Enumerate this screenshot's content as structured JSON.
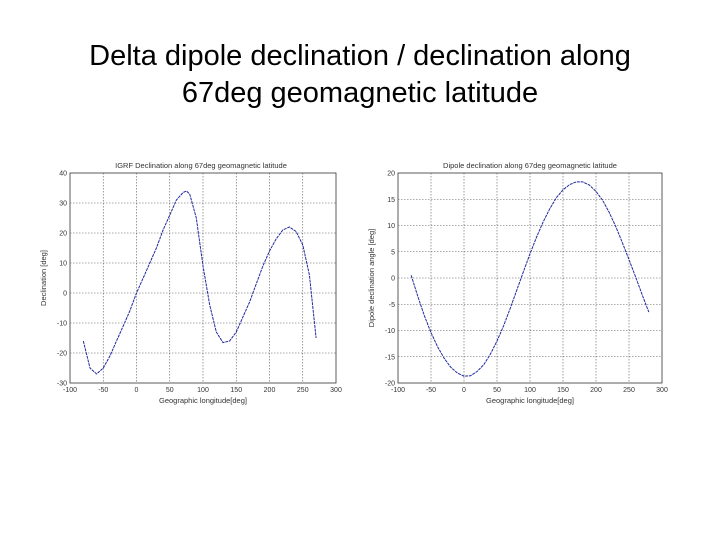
{
  "slide": {
    "title_line1": "Delta dipole declination / declination along",
    "title_line2": "67deg geomagnetic latitude"
  },
  "chart_data": [
    {
      "type": "line",
      "title": "IGRF Declination along 67deg geomagnetic latitude",
      "xlabel": "Geographic longitude[deg]",
      "ylabel": "Declination [deg]",
      "xlim": [
        -100,
        300
      ],
      "ylim": [
        -30,
        40
      ],
      "xticks": [
        -100,
        -50,
        0,
        50,
        100,
        150,
        200,
        250,
        300
      ],
      "yticks": [
        -30,
        -20,
        -10,
        0,
        10,
        20,
        30,
        40
      ],
      "grid": true,
      "line_color": "#1f2a9c",
      "series": [
        {
          "x": [
            -80,
            -70,
            -60,
            -50,
            -40,
            -30,
            -20,
            -10,
            0,
            10,
            20,
            30,
            40,
            50,
            60,
            70,
            75,
            80,
            90,
            100,
            110,
            120,
            130,
            140,
            150,
            160,
            170,
            180,
            190,
            200,
            210,
            220,
            230,
            240,
            250,
            260,
            270
          ],
          "y": [
            -16,
            -25,
            -27,
            -25,
            -21,
            -16,
            -11,
            -6,
            0,
            5,
            10,
            15,
            21,
            26,
            31,
            33.5,
            34,
            33,
            25,
            9,
            -4,
            -13,
            -16.5,
            -16,
            -13,
            -8,
            -3,
            3,
            9,
            14,
            18,
            21,
            22,
            20.5,
            16,
            6,
            -15
          ]
        }
      ]
    },
    {
      "type": "line",
      "title": "Dipole declination along 67deg geomagnetic latitude",
      "xlabel": "Geographic longitude[deg]",
      "ylabel": "Dipole declination angle [deg]",
      "xlim": [
        -100,
        300
      ],
      "ylim": [
        -20,
        20
      ],
      "xticks": [
        -100,
        -50,
        0,
        50,
        100,
        150,
        200,
        250,
        300
      ],
      "yticks": [
        -20,
        -15,
        -10,
        -5,
        0,
        5,
        10,
        15,
        20
      ],
      "ytick_labels": [
        "-20",
        "-15",
        "-10",
        "-5",
        "0",
        "5",
        "10",
        "15",
        "20"
      ],
      "grid": true,
      "line_color": "#1f2a9c",
      "series": [
        {
          "x": [
            -80,
            -70,
            -60,
            -50,
            -40,
            -30,
            -20,
            -10,
            0,
            10,
            20,
            30,
            40,
            50,
            60,
            70,
            80,
            90,
            100,
            110,
            120,
            130,
            140,
            150,
            160,
            170,
            180,
            190,
            200,
            210,
            220,
            230,
            240,
            250,
            260,
            270,
            280
          ],
          "y": [
            0.5,
            -3.5,
            -7.2,
            -10.4,
            -13.1,
            -15.3,
            -17,
            -18.1,
            -18.7,
            -18.6,
            -17.8,
            -16.5,
            -14.5,
            -12,
            -9.1,
            -5.8,
            -2.3,
            1.2,
            4.6,
            7.8,
            10.7,
            13.2,
            15.3,
            16.8,
            17.8,
            18.3,
            18.3,
            17.7,
            16.5,
            14.8,
            12.5,
            9.8,
            6.7,
            3.5,
            0.2,
            -3.2,
            -6.5
          ]
        }
      ]
    }
  ]
}
